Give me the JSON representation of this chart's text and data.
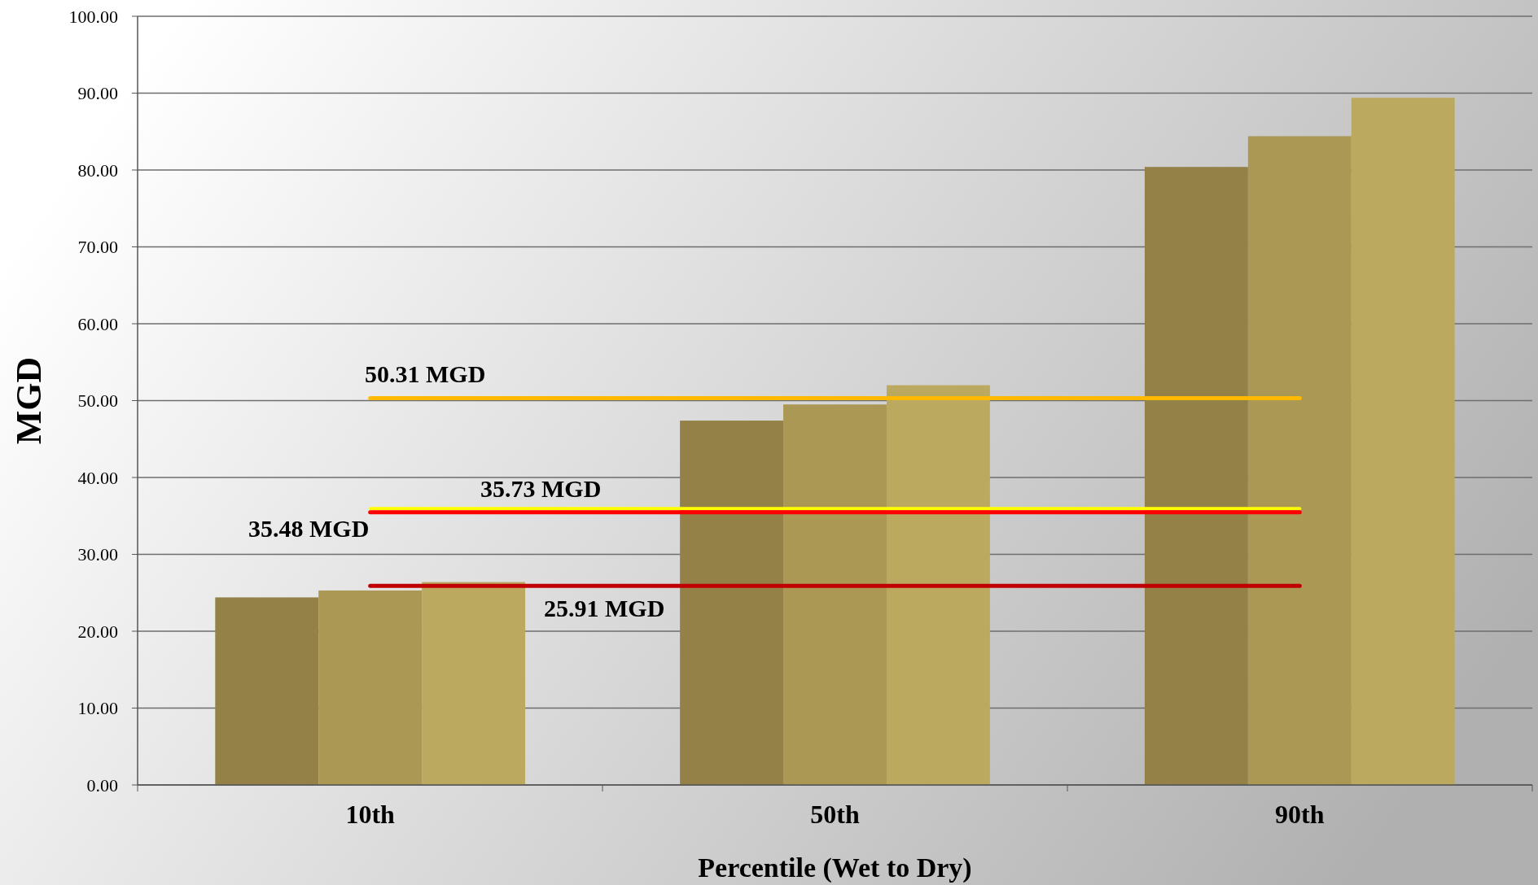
{
  "chart_data": {
    "type": "bar",
    "xlabel": "Percentile (Wet to Dry)",
    "ylabel": "MGD",
    "categories": [
      "10th",
      "50th",
      "90th"
    ],
    "series": [
      {
        "color": "#938147",
        "values": [
          24.4,
          47.4,
          80.4
        ]
      },
      {
        "color": "#aa9854",
        "values": [
          25.3,
          49.5,
          84.4
        ]
      },
      {
        "color": "#bca960",
        "values": [
          26.4,
          52.0,
          89.4
        ]
      }
    ],
    "ylim": [
      0,
      100
    ],
    "yticks": [
      {
        "value": 0,
        "label": "0.00"
      },
      {
        "value": 10,
        "label": "10.00"
      },
      {
        "value": 20,
        "label": "20.00"
      },
      {
        "value": 30,
        "label": "30.00"
      },
      {
        "value": 40,
        "label": "40.00"
      },
      {
        "value": 50,
        "label": "50.00"
      },
      {
        "value": 60,
        "label": "60.00"
      },
      {
        "value": 70,
        "label": "70.00"
      },
      {
        "value": 80,
        "label": "80.00"
      },
      {
        "value": 90,
        "label": "90.00"
      },
      {
        "value": 100,
        "label": "100.00"
      }
    ],
    "grid": "y",
    "ref_lines": [
      {
        "axis": "y",
        "value": 50.31,
        "label": "50.31 MGD",
        "color": "#ffb900"
      },
      {
        "axis": "y",
        "value": 35.73,
        "label": "35.73 MGD",
        "color": "#ffff00"
      },
      {
        "axis": "y",
        "value": 35.48,
        "label": "35.48 MGD",
        "color": "#ff0000"
      },
      {
        "axis": "y",
        "value": 25.91,
        "label": "25.91 MGD",
        "color": "#c00000"
      }
    ]
  }
}
